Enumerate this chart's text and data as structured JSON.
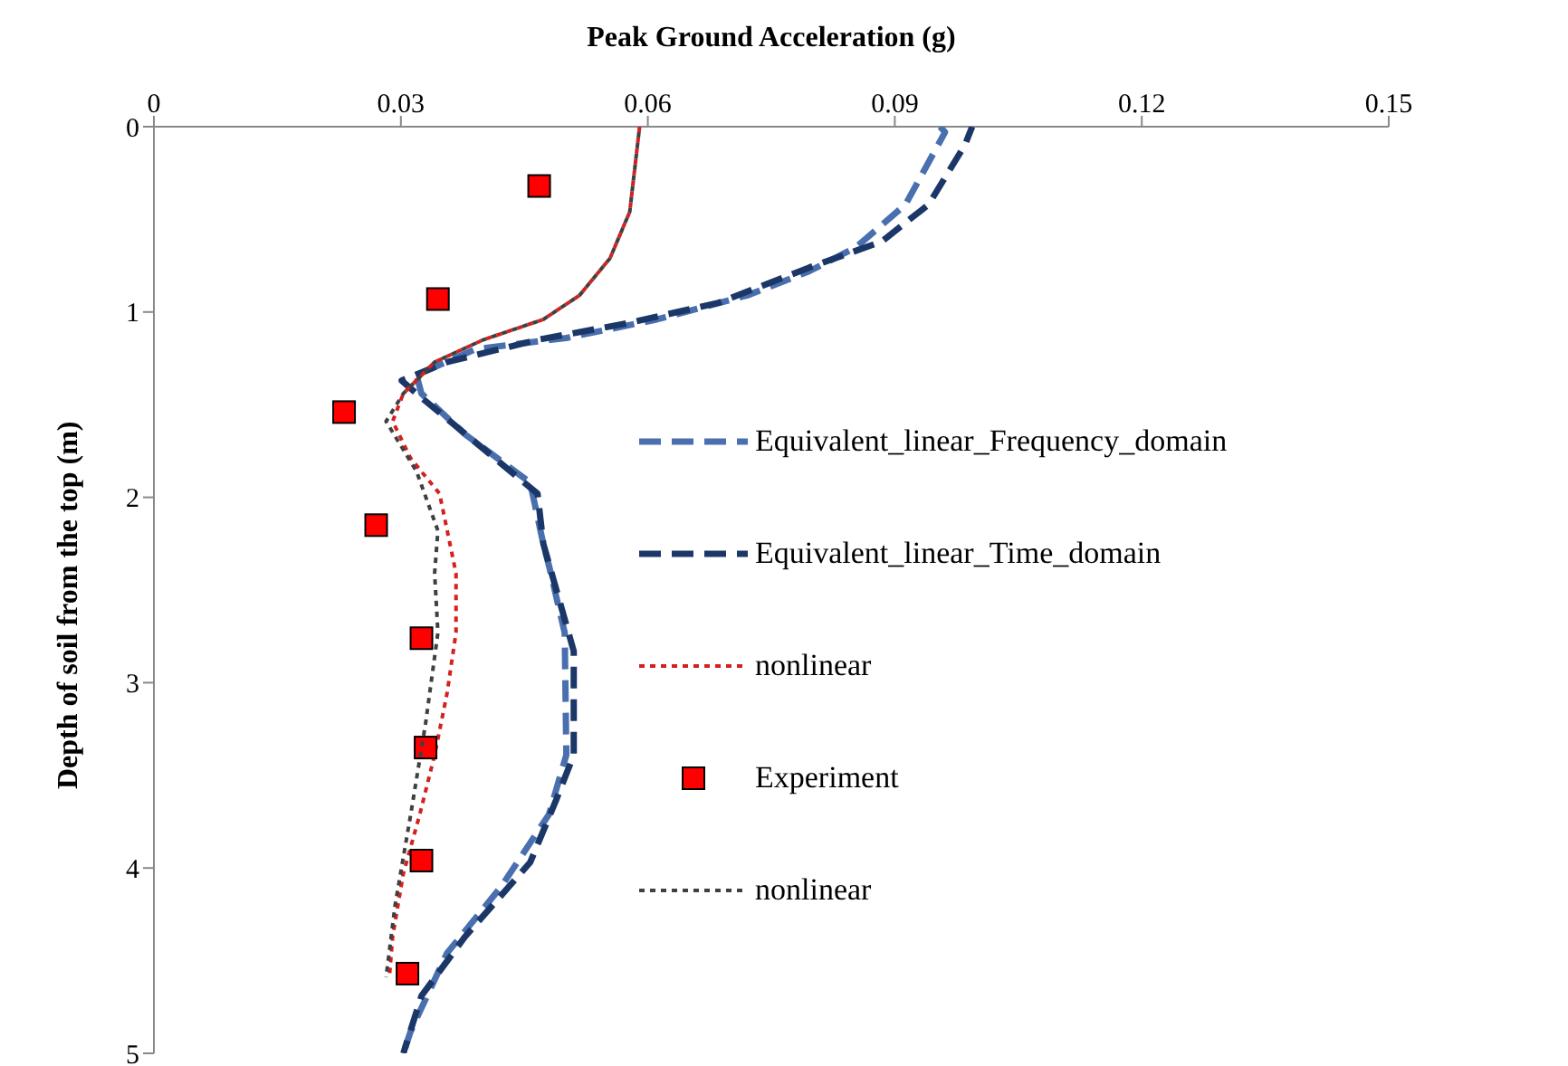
{
  "chart_data": {
    "type": "line",
    "xlabel": "Peak Ground Acceleration (g)",
    "ylabel": "Depth of soil from the top (m)",
    "xlim": [
      0,
      0.15
    ],
    "xticks": [
      0,
      0.03,
      0.06,
      0.09,
      0.12,
      0.15
    ],
    "ylim": [
      5,
      0
    ],
    "yticks": [
      0,
      1,
      2,
      3,
      4,
      5
    ],
    "grid": false,
    "legend": "right",
    "series": [
      {
        "name": "Equivalent_linear_Frequency_domain",
        "color": "#4a6fae",
        "line_style": "dashed",
        "marker": "none",
        "x": [
          0.0955,
          0.0961,
          0.0913,
          0.0853,
          0.0796,
          0.0721,
          0.0611,
          0.0501,
          0.0391,
          0.0319,
          0.0325,
          0.0378,
          0.0457,
          0.0473,
          0.048,
          0.0499,
          0.0501,
          0.048,
          0.0422,
          0.0356,
          0.0312,
          0.0303
        ],
        "values": [
          0,
          0.03,
          0.42,
          0.65,
          0.78,
          0.91,
          1.04,
          1.14,
          1.2,
          1.34,
          1.44,
          1.66,
          1.92,
          2.25,
          2.37,
          2.73,
          3.39,
          3.71,
          4.1,
          4.46,
          4.88,
          5
        ]
      },
      {
        "name": "Equivalent_linear_Time_domain",
        "color": "#1b3768",
        "line_style": "dashed",
        "marker": "none",
        "x": [
          0.0994,
          0.0985,
          0.0941,
          0.0884,
          0.0796,
          0.0686,
          0.0576,
          0.0466,
          0.0356,
          0.0301,
          0.0319,
          0.0466,
          0.0473,
          0.051,
          0.051,
          0.0488,
          0.0457,
          0.0378,
          0.0325,
          0.0303
        ],
        "values": [
          0,
          0.1,
          0.42,
          0.62,
          0.76,
          0.95,
          1.06,
          1.15,
          1.27,
          1.37,
          1.44,
          1.98,
          2.25,
          2.83,
          3.39,
          3.64,
          3.97,
          4.37,
          4.69,
          5
        ]
      },
      {
        "name": "nonlinear",
        "color": "#d42020",
        "line_style": "dotted",
        "marker": "none",
        "x": [
          0.059,
          0.0578,
          0.0554,
          0.0517,
          0.0473,
          0.04,
          0.0341,
          0.0303,
          0.029,
          0.0312,
          0.0347,
          0.0367,
          0.0367,
          0.0356,
          0.0341,
          0.0323,
          0.0303,
          0.029,
          0.0286
        ],
        "values": [
          0,
          0.46,
          0.71,
          0.91,
          1.04,
          1.15,
          1.27,
          1.44,
          1.59,
          1.79,
          1.98,
          2.41,
          2.73,
          3.06,
          3.39,
          3.71,
          4.03,
          4.37,
          4.59
        ]
      },
      {
        "name": "Experiment",
        "type": "scatter",
        "color": "#ff0000",
        "marker": "square",
        "x": [
          0.0468,
          0.0345,
          0.0231,
          0.027,
          0.0325,
          0.033,
          0.0325,
          0.0308
        ],
        "values": [
          0.32,
          0.93,
          1.54,
          2.15,
          2.76,
          3.35,
          3.96,
          4.57
        ]
      },
      {
        "name": "nonlinear",
        "color": "#404040",
        "line_style": "dotted",
        "marker": "none",
        "x": [
          0.059,
          0.0578,
          0.0554,
          0.0517,
          0.0473,
          0.04,
          0.0341,
          0.0303,
          0.0282,
          0.0319,
          0.0345,
          0.0341,
          0.0345,
          0.033,
          0.0312,
          0.0293,
          0.0282
        ],
        "values": [
          0,
          0.46,
          0.71,
          0.91,
          1.04,
          1.15,
          1.27,
          1.44,
          1.59,
          1.86,
          2.18,
          2.41,
          2.73,
          3.22,
          3.71,
          4.2,
          4.59
        ]
      }
    ]
  }
}
